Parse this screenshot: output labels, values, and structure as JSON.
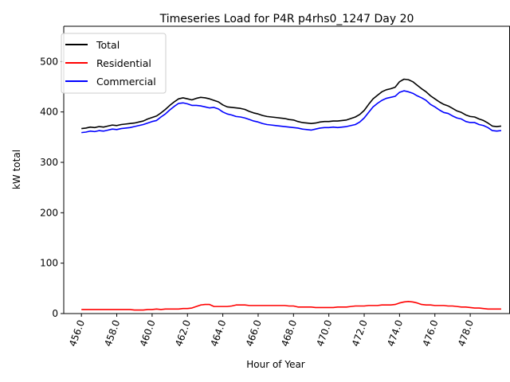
{
  "chart_data": {
    "type": "line",
    "title": "Timeseries Load for P4R p4rhs0_1247  Day 20",
    "xlabel": "Hour of Year",
    "ylabel": "kW total",
    "xlim": [
      455.0,
      480.25
    ],
    "ylim": [
      0,
      570
    ],
    "x_ticks": [
      456.0,
      458.0,
      460.0,
      462.0,
      464.0,
      466.0,
      468.0,
      470.0,
      472.0,
      474.0,
      476.0,
      478.0
    ],
    "x_tick_labels": [
      "456.0",
      "458.0",
      "460.0",
      "462.0",
      "464.0",
      "466.0",
      "468.0",
      "470.0",
      "472.0",
      "474.0",
      "476.0",
      "478.0"
    ],
    "y_ticks": [
      0,
      100,
      200,
      300,
      400,
      500
    ],
    "y_tick_labels": [
      "0",
      "100",
      "200",
      "300",
      "400",
      "500"
    ],
    "grid": false,
    "legend_position": "top-left",
    "x": [
      456.0,
      456.25,
      456.5,
      456.75,
      457.0,
      457.25,
      457.5,
      457.75,
      458.0,
      458.25,
      458.5,
      458.75,
      459.0,
      459.25,
      459.5,
      459.75,
      460.0,
      460.25,
      460.5,
      460.75,
      461.0,
      461.25,
      461.5,
      461.75,
      462.0,
      462.25,
      462.5,
      462.75,
      463.0,
      463.25,
      463.5,
      463.75,
      464.0,
      464.25,
      464.5,
      464.75,
      465.0,
      465.25,
      465.5,
      465.75,
      466.0,
      466.25,
      466.5,
      466.75,
      467.0,
      467.25,
      467.5,
      467.75,
      468.0,
      468.25,
      468.5,
      468.75,
      469.0,
      469.25,
      469.5,
      469.75,
      470.0,
      470.25,
      470.5,
      470.75,
      471.0,
      471.25,
      471.5,
      471.75,
      472.0,
      472.25,
      472.5,
      472.75,
      473.0,
      473.25,
      473.5,
      473.75,
      474.0,
      474.25,
      474.5,
      474.75,
      475.0,
      475.25,
      475.5,
      475.75,
      476.0,
      476.25,
      476.5,
      476.75,
      477.0,
      477.25,
      477.5,
      477.75,
      478.0,
      478.25,
      478.5,
      478.75,
      479.0,
      479.25,
      479.5,
      479.75
    ],
    "series": [
      {
        "name": "Total",
        "color": "#000000",
        "values": [
          367,
          368,
          370,
          369,
          371,
          370,
          372,
          374,
          373,
          375,
          376,
          377,
          378,
          380,
          382,
          386,
          389,
          392,
          398,
          405,
          413,
          420,
          426,
          428,
          426,
          424,
          427,
          429,
          428,
          426,
          423,
          420,
          414,
          410,
          409,
          408,
          407,
          405,
          401,
          398,
          396,
          393,
          391,
          390,
          389,
          388,
          387,
          385,
          384,
          381,
          379,
          378,
          377,
          378,
          380,
          381,
          381,
          382,
          382,
          383,
          384,
          387,
          390,
          395,
          403,
          415,
          426,
          433,
          440,
          444,
          446,
          449,
          460,
          465,
          464,
          460,
          453,
          446,
          440,
          432,
          426,
          420,
          415,
          412,
          407,
          402,
          399,
          394,
          391,
          390,
          386,
          383,
          378,
          372,
          371,
          372
        ]
      },
      {
        "name": "Residential",
        "color": "#ff0000",
        "values": [
          8,
          8,
          8,
          8,
          8,
          8,
          8,
          8,
          8,
          8,
          8,
          8,
          7,
          7,
          7,
          8,
          8,
          9,
          8,
          9,
          9,
          9,
          9,
          10,
          10,
          11,
          14,
          17,
          18,
          18,
          14,
          14,
          14,
          14,
          15,
          17,
          17,
          17,
          16,
          16,
          16,
          16,
          16,
          16,
          16,
          16,
          16,
          15,
          15,
          13,
          13,
          13,
          13,
          12,
          12,
          12,
          12,
          12,
          13,
          13,
          13,
          14,
          15,
          15,
          15,
          16,
          16,
          16,
          17,
          17,
          17,
          18,
          21,
          23,
          24,
          23,
          21,
          18,
          17,
          17,
          16,
          16,
          16,
          15,
          15,
          14,
          13,
          13,
          12,
          11,
          11,
          10,
          9,
          9,
          9,
          9
        ]
      },
      {
        "name": "Commercial",
        "color": "#0000ff",
        "values": [
          359,
          360,
          362,
          361,
          363,
          362,
          364,
          366,
          365,
          367,
          368,
          369,
          371,
          373,
          375,
          378,
          381,
          383,
          390,
          396,
          404,
          411,
          417,
          418,
          416,
          413,
          413,
          412,
          410,
          408,
          409,
          406,
          400,
          396,
          394,
          391,
          390,
          388,
          385,
          382,
          380,
          377,
          375,
          374,
          373,
          372,
          371,
          370,
          369,
          368,
          366,
          365,
          364,
          366,
          368,
          369,
          369,
          370,
          369,
          370,
          371,
          373,
          375,
          380,
          388,
          399,
          410,
          417,
          423,
          427,
          429,
          431,
          439,
          442,
          440,
          437,
          432,
          428,
          423,
          415,
          410,
          404,
          399,
          397,
          392,
          388,
          386,
          381,
          379,
          379,
          375,
          373,
          369,
          363,
          362,
          363
        ]
      }
    ]
  }
}
